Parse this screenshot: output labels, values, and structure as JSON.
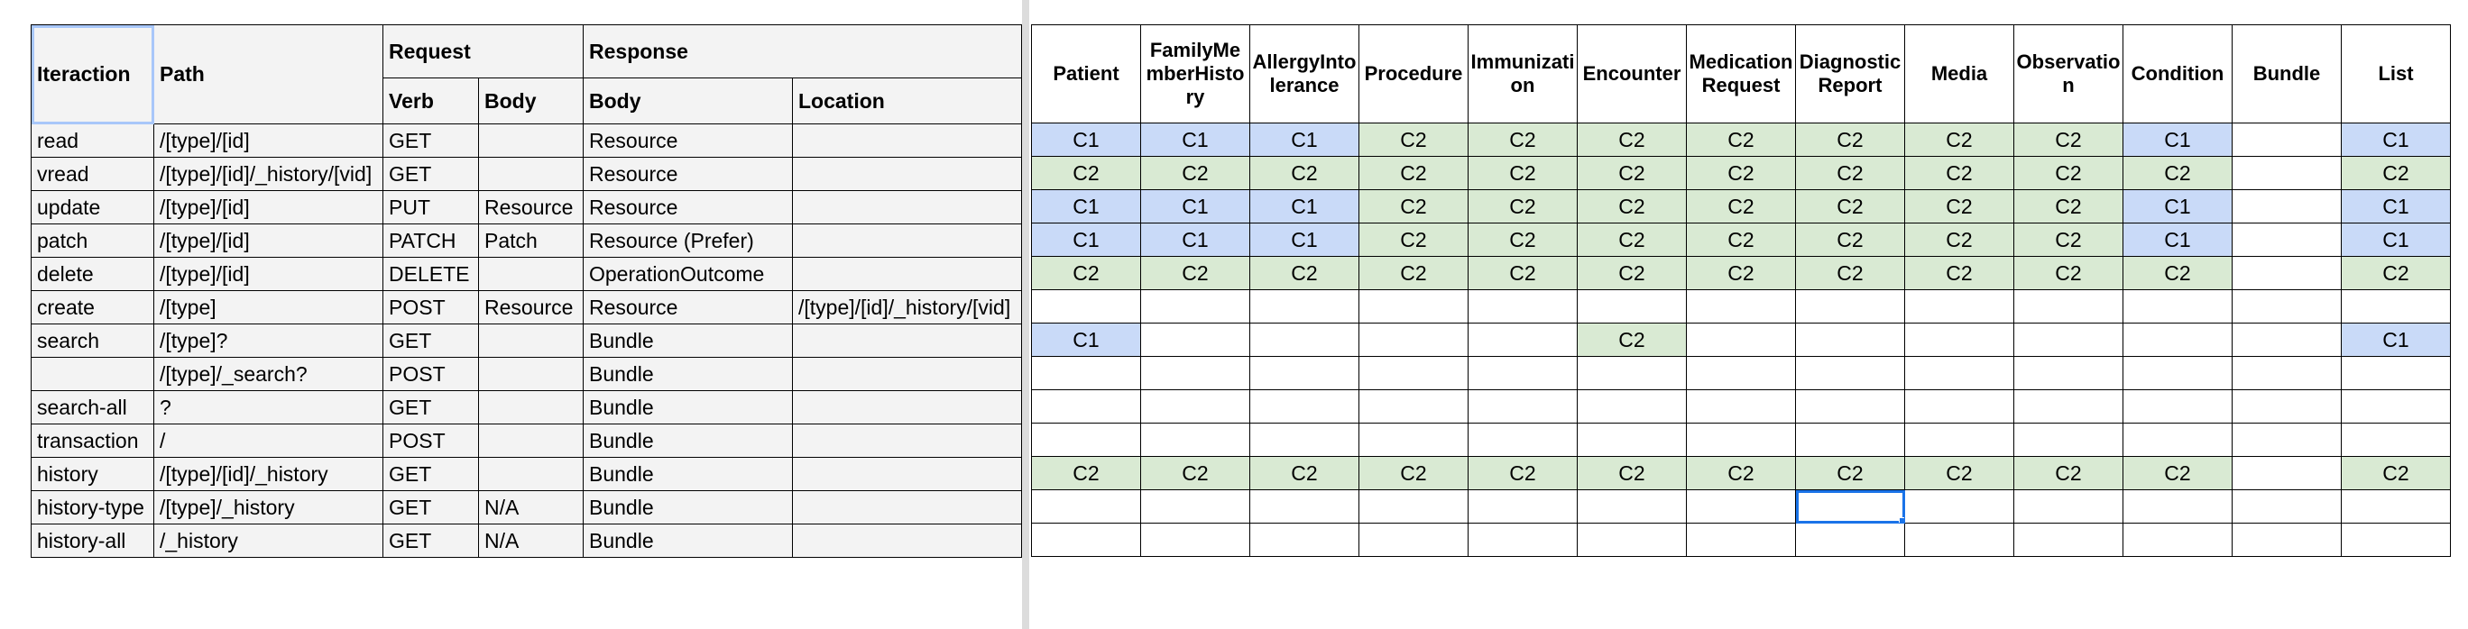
{
  "left": {
    "headers": {
      "interaction": "Iteraction",
      "path": "Path",
      "request": "Request",
      "response": "Response",
      "verb": "Verb",
      "req_body": "Body",
      "resp_body": "Body",
      "location": "Location"
    },
    "rows": [
      {
        "interaction": "read",
        "path": "/[type]/[id]",
        "verb": "GET",
        "req_body": "",
        "resp_body": "Resource",
        "location": ""
      },
      {
        "interaction": "vread",
        "path": "/[type]/[id]/_history/[vid]",
        "verb": "GET",
        "req_body": "",
        "resp_body": "Resource",
        "location": ""
      },
      {
        "interaction": "update",
        "path": "/[type]/[id]",
        "verb": "PUT",
        "req_body": "Resource",
        "resp_body": "Resource",
        "location": ""
      },
      {
        "interaction": "patch",
        "path": "/[type]/[id]",
        "verb": "PATCH",
        "req_body": "Patch",
        "resp_body": "Resource (Prefer)",
        "location": ""
      },
      {
        "interaction": "delete",
        "path": "/[type]/[id]",
        "verb": "DELETE",
        "req_body": "",
        "resp_body": "OperationOutcome",
        "location": ""
      },
      {
        "interaction": "create",
        "path": "/[type]",
        "verb": "POST",
        "req_body": "Resource",
        "resp_body": "Resource",
        "location": "/[type]/[id]/_history/[vid]"
      },
      {
        "interaction": "search",
        "path": "/[type]?",
        "verb": "GET",
        "req_body": "",
        "resp_body": "Bundle",
        "location": ""
      },
      {
        "interaction": "",
        "path": "/[type]/_search?",
        "verb": "POST",
        "req_body": "",
        "resp_body": "Bundle",
        "location": ""
      },
      {
        "interaction": "search-all",
        "path": "?",
        "verb": "GET",
        "req_body": "",
        "resp_body": "Bundle",
        "location": ""
      },
      {
        "interaction": "transaction",
        "path": "/",
        "verb": "POST",
        "req_body": "",
        "resp_body": "Bundle",
        "location": ""
      },
      {
        "interaction": "history",
        "path": "/[type]/[id]/_history",
        "verb": "GET",
        "req_body": "",
        "resp_body": "Bundle",
        "location": ""
      },
      {
        "interaction": "history-type",
        "path": "/[type]/_history",
        "verb": "GET",
        "req_body": "N/A",
        "resp_body": "Bundle",
        "location": ""
      },
      {
        "interaction": "history-all",
        "path": "/_history",
        "verb": "GET",
        "req_body": "N/A",
        "resp_body": "Bundle",
        "location": ""
      }
    ]
  },
  "right": {
    "columns": [
      "Patient",
      "FamilyMemberHistory",
      "AllergyIntolerance",
      "Procedure",
      "Immunization",
      "Encounter",
      "MedicationRequest",
      "DiagnosticReport",
      "Media",
      "Observation",
      "Condition",
      "Bundle",
      "List"
    ],
    "rows": [
      [
        "C1",
        "C1",
        "C1",
        "C2",
        "C2",
        "C2",
        "C2",
        "C2",
        "C2",
        "C2",
        "C1",
        "",
        "C1"
      ],
      [
        "C2",
        "C2",
        "C2",
        "C2",
        "C2",
        "C2",
        "C2",
        "C2",
        "C2",
        "C2",
        "C2",
        "",
        "C2"
      ],
      [
        "C1",
        "C1",
        "C1",
        "C2",
        "C2",
        "C2",
        "C2",
        "C2",
        "C2",
        "C2",
        "C1",
        "",
        "C1"
      ],
      [
        "C1",
        "C1",
        "C1",
        "C2",
        "C2",
        "C2",
        "C2",
        "C2",
        "C2",
        "C2",
        "C1",
        "",
        "C1"
      ],
      [
        "C2",
        "C2",
        "C2",
        "C2",
        "C2",
        "C2",
        "C2",
        "C2",
        "C2",
        "C2",
        "C2",
        "",
        "C2"
      ],
      [
        "",
        "",
        "",
        "",
        "",
        "",
        "",
        "",
        "",
        "",
        "",
        "",
        ""
      ],
      [
        "C1",
        "",
        "",
        "",
        "",
        "C2",
        "",
        "",
        "",
        "",
        "",
        "",
        "C1"
      ],
      [
        "",
        "",
        "",
        "",
        "",
        "",
        "",
        "",
        "",
        "",
        "",
        "",
        ""
      ],
      [
        "",
        "",
        "",
        "",
        "",
        "",
        "",
        "",
        "",
        "",
        "",
        "",
        ""
      ],
      [
        "",
        "",
        "",
        "",
        "",
        "",
        "",
        "",
        "",
        "",
        "",
        "",
        ""
      ],
      [
        "C2",
        "C2",
        "C2",
        "C2",
        "C2",
        "C2",
        "C2",
        "C2",
        "C2",
        "C2",
        "C2",
        "",
        "C2"
      ],
      [
        "",
        "",
        "",
        "",
        "",
        "",
        "",
        "",
        "",
        "",
        "",
        "",
        ""
      ],
      [
        "",
        "",
        "",
        "",
        "",
        "",
        "",
        "",
        "",
        "",
        "",
        "",
        ""
      ]
    ]
  },
  "colors": {
    "c1": "#c9daf8",
    "c2": "#d9ead3",
    "selection": "#1a73e8"
  }
}
